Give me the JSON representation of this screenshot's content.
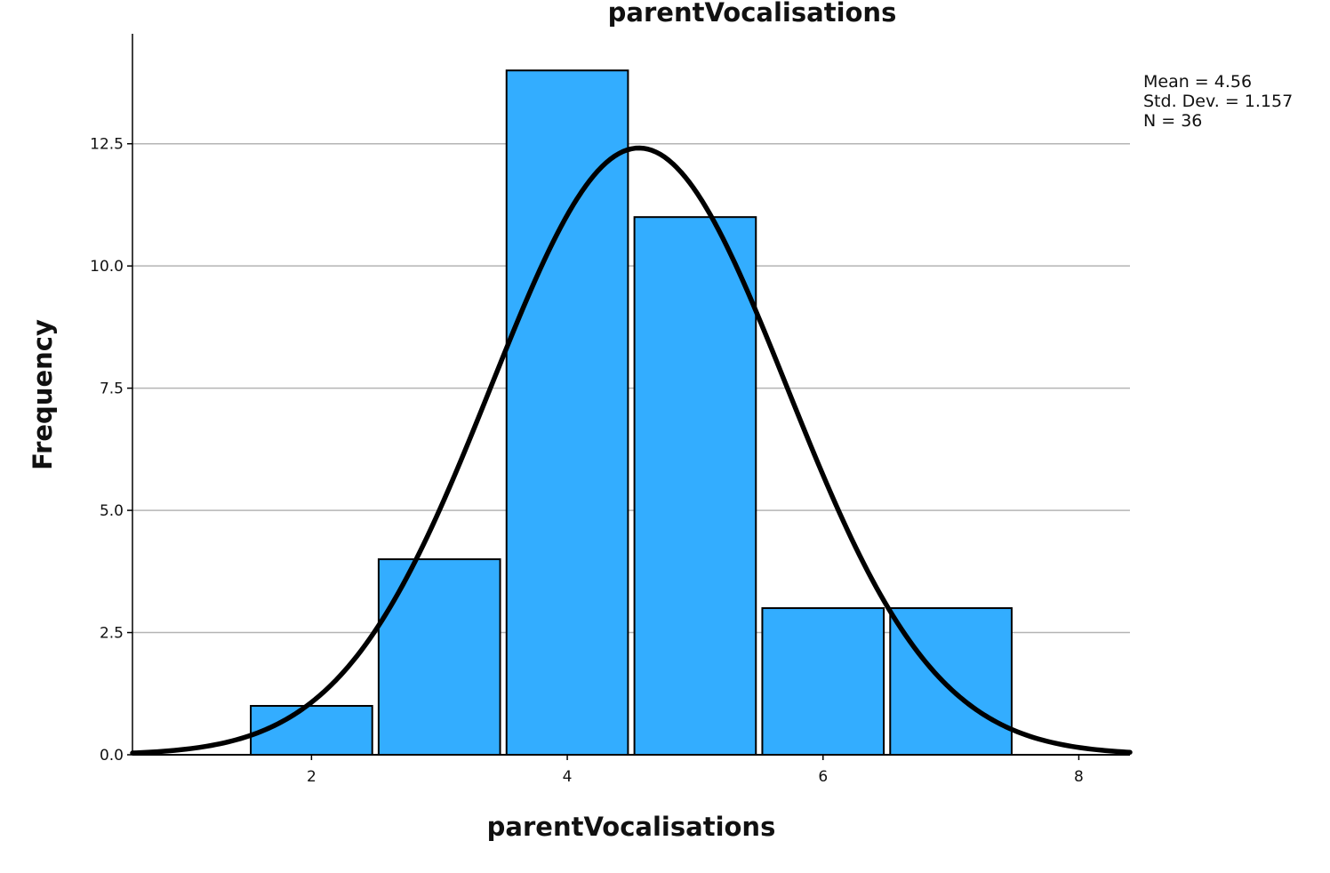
{
  "chart_data": {
    "type": "bar",
    "title": "parentVocalisations",
    "xlabel": "parentVocalisations",
    "ylabel": "Frequency",
    "bins": [
      {
        "center": 2,
        "value": 1
      },
      {
        "center": 3,
        "value": 4
      },
      {
        "center": 4,
        "value": 14
      },
      {
        "center": 5,
        "value": 11
      },
      {
        "center": 6,
        "value": 3
      },
      {
        "center": 7,
        "value": 3
      }
    ],
    "xlim": [
      0.6,
      8.4
    ],
    "ylim": [
      0,
      14.75
    ],
    "x_ticks": [
      2,
      4,
      6,
      8
    ],
    "y_ticks": [
      "0.0",
      "2.5",
      "5.0",
      "7.5",
      "10.0",
      "12.5"
    ],
    "grid": "horizontal",
    "bar_color": "#33adff",
    "curve_color": "#000000",
    "normal_curve": {
      "mean": 4.56,
      "sd": 1.157,
      "n": 36,
      "bin_width": 1
    },
    "stats": [
      "Mean = 4.56",
      "Std. Dev. = 1.157",
      "N = 36"
    ]
  }
}
